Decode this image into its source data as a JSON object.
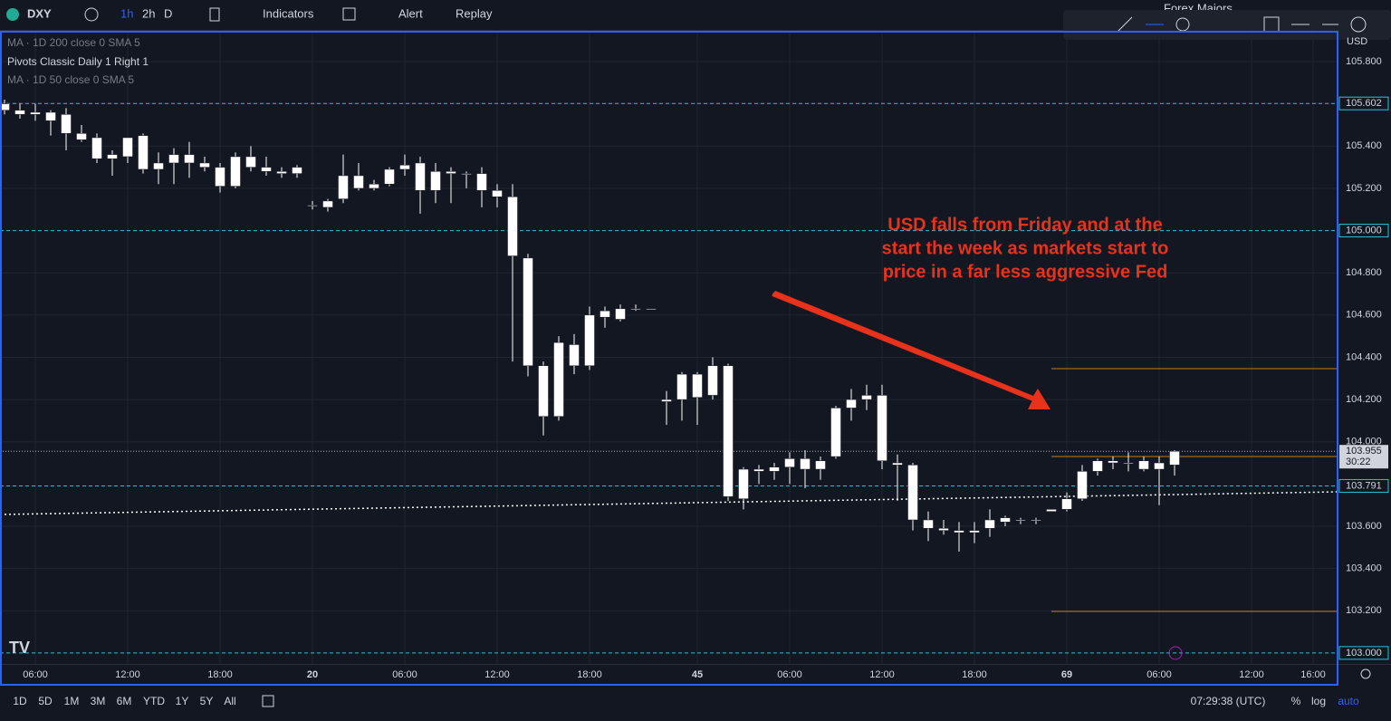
{
  "toolbar": {
    "symbol": "DXY",
    "intervals": [
      "1h",
      "2h",
      "D"
    ],
    "buttons": [
      "Indicators",
      "Alert",
      "Replay"
    ],
    "watchlist": "Forex Majors",
    "currency": "USD"
  },
  "legend": [
    "MA · 1D 200 close 0 SMA 5",
    "Pivots Classic Daily 1 Right 1",
    "MA · 1D 50 close 0 SMA 5"
  ],
  "chart_data": {
    "type": "candlestick",
    "annotation": [
      "USD falls from Friday and at the",
      "start the week as markets start to",
      "price in a far less aggressive Fed"
    ],
    "x": [
      0,
      1,
      2,
      3,
      4,
      5,
      6,
      7,
      8,
      9,
      10,
      11,
      12,
      13,
      14,
      15,
      16,
      17,
      18,
      19,
      20,
      21,
      22,
      23,
      24,
      25,
      26,
      27,
      28,
      29,
      30,
      31,
      32,
      33,
      34,
      35,
      36,
      37,
      38,
      39,
      40,
      41,
      42,
      43,
      44,
      45,
      46,
      47,
      48,
      49,
      50,
      51,
      52,
      53,
      54,
      55,
      56,
      57,
      58,
      59,
      60,
      61,
      62,
      63,
      64,
      65,
      66,
      67,
      68,
      69,
      70,
      71,
      72,
      73,
      74,
      75,
      76
    ],
    "open": [
      105.6,
      105.57,
      105.55,
      105.56,
      105.55,
      105.46,
      105.44,
      105.34,
      105.35,
      105.45,
      105.29,
      105.32,
      105.36,
      105.32,
      105.3,
      105.21,
      105.35,
      105.3,
      105.28,
      105.27,
      105.12,
      105.11,
      105.15,
      105.26,
      105.2,
      105.22,
      105.29,
      105.32,
      105.19,
      105.28,
      105.27,
      105.27,
      105.19,
      105.16,
      104.87,
      104.36,
      104.12,
      104.46,
      104.36,
      104.59,
      104.63,
      104.63,
      104.63,
      104.19,
      104.2,
      104.32,
      104.22,
      104.36,
      103.73,
      103.87,
      103.86,
      103.88,
      103.92,
      103.87,
      103.93,
      104.16,
      104.2,
      104.22,
      103.9,
      103.89,
      103.63,
      103.59,
      103.58,
      103.57,
      103.59,
      103.62,
      103.63,
      103.63,
      103.67,
      103.68,
      103.73,
      103.86,
      103.91,
      103.9,
      103.91,
      103.87,
      103.89
    ],
    "high": [
      105.62,
      105.6,
      105.6,
      105.57,
      105.58,
      105.5,
      105.46,
      105.38,
      105.44,
      105.46,
      105.37,
      105.39,
      105.42,
      105.35,
      105.32,
      105.37,
      105.4,
      105.35,
      105.3,
      105.31,
      105.14,
      105.15,
      105.36,
      105.32,
      105.24,
      105.3,
      105.36,
      105.35,
      105.32,
      105.3,
      105.28,
      105.3,
      105.22,
      105.22,
      104.89,
      104.38,
      104.5,
      104.51,
      104.64,
      104.64,
      104.65,
      104.65,
      104.63,
      104.24,
      104.33,
      104.33,
      104.4,
      104.37,
      103.88,
      103.89,
      103.9,
      103.95,
      103.96,
      103.93,
      104.17,
      104.25,
      104.27,
      104.27,
      103.94,
      103.9,
      103.67,
      103.63,
      103.62,
      103.62,
      103.68,
      103.65,
      103.64,
      103.64,
      103.68,
      103.76,
      103.89,
      103.92,
      103.93,
      103.95,
      103.93,
      103.93,
      103.96
    ],
    "low": [
      105.55,
      105.53,
      105.52,
      105.45,
      105.38,
      105.42,
      105.32,
      105.26,
      105.32,
      105.27,
      105.22,
      105.22,
      105.25,
      105.28,
      105.18,
      105.2,
      105.28,
      105.26,
      105.25,
      105.25,
      105.1,
      105.09,
      105.13,
      105.19,
      105.19,
      105.21,
      105.26,
      105.08,
      105.13,
      105.13,
      105.2,
      105.11,
      105.11,
      104.38,
      104.31,
      104.03,
      104.1,
      104.32,
      104.34,
      104.54,
      104.57,
      104.62,
      104.63,
      104.08,
      104.1,
      104.08,
      104.2,
      103.72,
      103.68,
      103.8,
      103.82,
      103.8,
      103.78,
      103.82,
      103.92,
      104.1,
      104.15,
      103.87,
      103.72,
      103.58,
      103.53,
      103.56,
      103.48,
      103.52,
      103.55,
      103.6,
      103.61,
      103.61,
      103.67,
      103.67,
      103.72,
      103.84,
      103.87,
      103.86,
      103.86,
      103.7,
      103.84
    ],
    "close": [
      105.57,
      105.55,
      105.56,
      105.52,
      105.46,
      105.43,
      105.34,
      105.36,
      105.44,
      105.29,
      105.32,
      105.36,
      105.32,
      105.3,
      105.21,
      105.35,
      105.3,
      105.28,
      105.27,
      105.3,
      105.12,
      105.14,
      105.26,
      105.2,
      105.22,
      105.29,
      105.31,
      105.19,
      105.28,
      105.27,
      105.27,
      105.19,
      105.16,
      104.88,
      104.36,
      104.12,
      104.47,
      104.36,
      104.6,
      104.62,
      104.58,
      104.63,
      104.63,
      104.2,
      104.32,
      104.21,
      104.36,
      103.74,
      103.87,
      103.86,
      103.88,
      103.92,
      103.87,
      103.91,
      104.16,
      104.2,
      104.22,
      103.91,
      103.89,
      103.63,
      103.59,
      103.58,
      103.57,
      103.58,
      103.63,
      103.64,
      103.63,
      103.63,
      103.68,
      103.73,
      103.86,
      103.91,
      103.9,
      103.9,
      103.87,
      103.9,
      103.955
    ],
    "candle_color": "#ffffff",
    "xlim": [
      -0.294,
      86.647
    ],
    "ylim": [
      102.948,
      105.946
    ],
    "xticks": [
      {
        "value": 2,
        "label": "06:00"
      },
      {
        "value": 8,
        "label": "12:00"
      },
      {
        "value": 14,
        "label": "18:00"
      },
      20,
      {
        "value": 26,
        "label": "06:00"
      },
      {
        "value": 32,
        "label": "12:00"
      },
      {
        "value": 38,
        "label": "18:00"
      },
      45,
      {
        "value": 51,
        "label": "06:00"
      },
      {
        "value": 57,
        "label": "12:00"
      },
      {
        "value": 63,
        "label": "18:00"
      },
      69,
      {
        "value": 75,
        "label": "06:00"
      },
      {
        "value": 81,
        "label": "12:00"
      },
      {
        "value": 85,
        "label": "16:00"
      }
    ],
    "yticks": [
      {
        "value": 105.8,
        "label": "105.800"
      },
      {
        "value": 105.4,
        "label": "105.400"
      },
      {
        "value": 105.2,
        "label": "105.200"
      },
      {
        "value": 104.8,
        "label": "104.800"
      },
      {
        "value": 104.6,
        "label": "104.600"
      },
      {
        "value": 104.4,
        "label": "104.400"
      },
      {
        "value": 104.2,
        "label": "104.200"
      },
      {
        "value": 104.0,
        "label": "104.000"
      },
      {
        "value": 103.6,
        "label": "103.600"
      },
      {
        "value": 103.4,
        "label": "103.400"
      },
      {
        "value": 103.2,
        "label": "103.200"
      }
    ],
    "grid": true,
    "pivots": [
      {
        "value": 105.602,
        "label": "105.602"
      },
      {
        "value": 105.0,
        "label": "105.000"
      },
      {
        "value": 103.791,
        "label": "103.791"
      },
      {
        "value": 103.0,
        "label": "103.000"
      }
    ],
    "pivot_color": "#26c6da",
    "levels": [
      104.346,
      103.93,
      103.197
    ],
    "levels_start": 68,
    "levels_color": "#c77c1a",
    "ma": {
      "x": [
        0,
        86.6
      ],
      "values": [
        103.656,
        103.763
      ]
    },
    "last_price": {
      "value": 103.955,
      "label": "103.955"
    },
    "countdown": "30:22"
  },
  "range_buttons": [
    "1D",
    "5D",
    "1M",
    "3M",
    "6M",
    "YTD",
    "1Y",
    "5Y",
    "All"
  ],
  "status": {
    "clock": "07:29:38 (UTC)",
    "percent": "%",
    "log": "log",
    "auto": "auto"
  }
}
